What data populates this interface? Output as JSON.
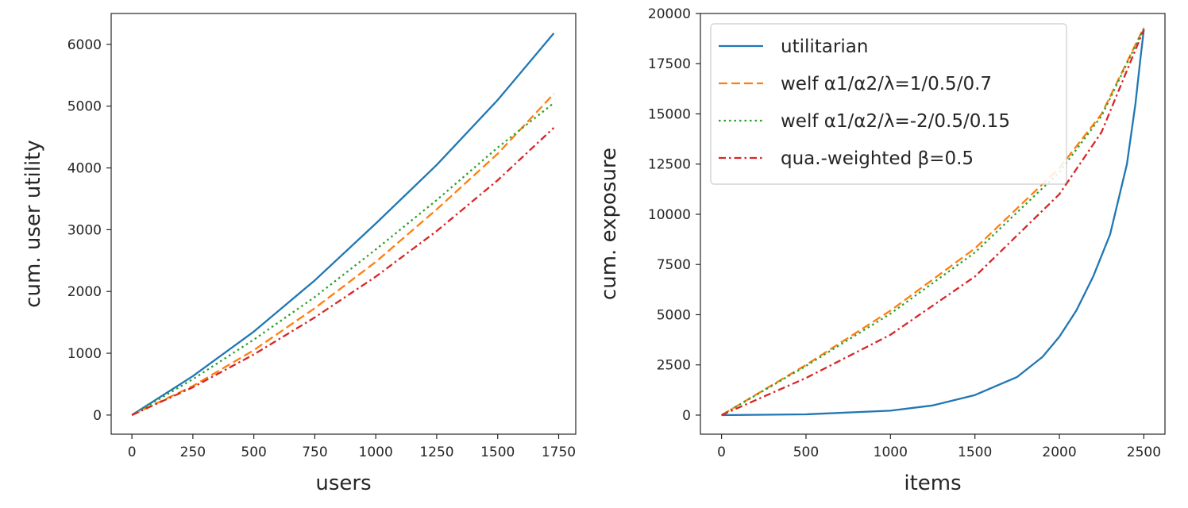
{
  "chart_data": [
    {
      "type": "line",
      "xlabel": "users",
      "ylabel": "cum. user utility",
      "xlim": [
        -85,
        1820
      ],
      "ylim": [
        -310,
        6500
      ],
      "xticks": [
        0,
        250,
        500,
        750,
        1000,
        1250,
        1500,
        1750
      ],
      "yticks": [
        0,
        1000,
        2000,
        3000,
        4000,
        5000,
        6000
      ],
      "grid": false,
      "legend": "none",
      "series": [
        {
          "name": "utilitarian",
          "color": "#1f77b4",
          "dash": "solid",
          "x": [
            0,
            250,
            500,
            750,
            1000,
            1250,
            1500,
            1730
          ],
          "y": [
            0,
            630,
            1350,
            2180,
            3100,
            4050,
            5100,
            6180
          ]
        },
        {
          "name": "welf α1/α2/λ=1/0.5/0.7",
          "color": "#ff7f0e",
          "dash": "dashed",
          "x": [
            0,
            250,
            500,
            750,
            1000,
            1250,
            1500,
            1730
          ],
          "y": [
            0,
            470,
            1050,
            1730,
            2480,
            3330,
            4230,
            5200
          ]
        },
        {
          "name": "welf α1/α2/λ=-2/0.5/0.15",
          "color": "#2ca02c",
          "dash": "dotted",
          "x": [
            0,
            250,
            500,
            750,
            1000,
            1250,
            1500,
            1730
          ],
          "y": [
            0,
            580,
            1220,
            1910,
            2680,
            3480,
            4330,
            5050
          ]
        },
        {
          "name": "qua.-weighted β=0.5",
          "color": "#d62728",
          "dash": "dashdot",
          "x": [
            0,
            250,
            500,
            750,
            1000,
            1250,
            1500,
            1730
          ],
          "y": [
            0,
            450,
            980,
            1580,
            2240,
            2980,
            3800,
            4650
          ]
        }
      ]
    },
    {
      "type": "line",
      "xlabel": "items",
      "ylabel": "cum. exposure",
      "xlim": [
        -125,
        2625
      ],
      "ylim": [
        -950,
        20000
      ],
      "xticks": [
        0,
        500,
        1000,
        1500,
        2000,
        2500
      ],
      "yticks": [
        0,
        2500,
        5000,
        7500,
        10000,
        12500,
        15000,
        17500,
        20000
      ],
      "grid": false,
      "legend": "top-left",
      "series": [
        {
          "name": "utilitarian",
          "color": "#1f77b4",
          "dash": "solid",
          "x": [
            0,
            500,
            1000,
            1250,
            1500,
            1750,
            1900,
            2000,
            2100,
            2200,
            2300,
            2400,
            2450,
            2480,
            2500
          ],
          "y": [
            0,
            40,
            220,
            480,
            1000,
            1900,
            2900,
            3900,
            5200,
            6900,
            9000,
            12500,
            15500,
            17800,
            19200
          ]
        },
        {
          "name": "welf α1/α2/λ=1/0.5/0.7",
          "color": "#ff7f0e",
          "dash": "dashed",
          "x": [
            0,
            500,
            1000,
            1500,
            2000,
            2250,
            2500
          ],
          "y": [
            0,
            2500,
            5200,
            8300,
            12300,
            15000,
            19300
          ]
        },
        {
          "name": "welf α1/α2/λ=-2/0.5/0.15",
          "color": "#2ca02c",
          "dash": "dotted",
          "x": [
            0,
            500,
            1000,
            1500,
            2000,
            2250,
            2500
          ],
          "y": [
            0,
            2450,
            5050,
            8100,
            12100,
            14900,
            19250
          ]
        },
        {
          "name": "qua.-weighted β=0.5",
          "color": "#d62728",
          "dash": "dashdot",
          "x": [
            0,
            500,
            1000,
            1500,
            2000,
            2250,
            2500
          ],
          "y": [
            0,
            1850,
            4000,
            6900,
            11000,
            14100,
            19200
          ]
        }
      ]
    }
  ]
}
